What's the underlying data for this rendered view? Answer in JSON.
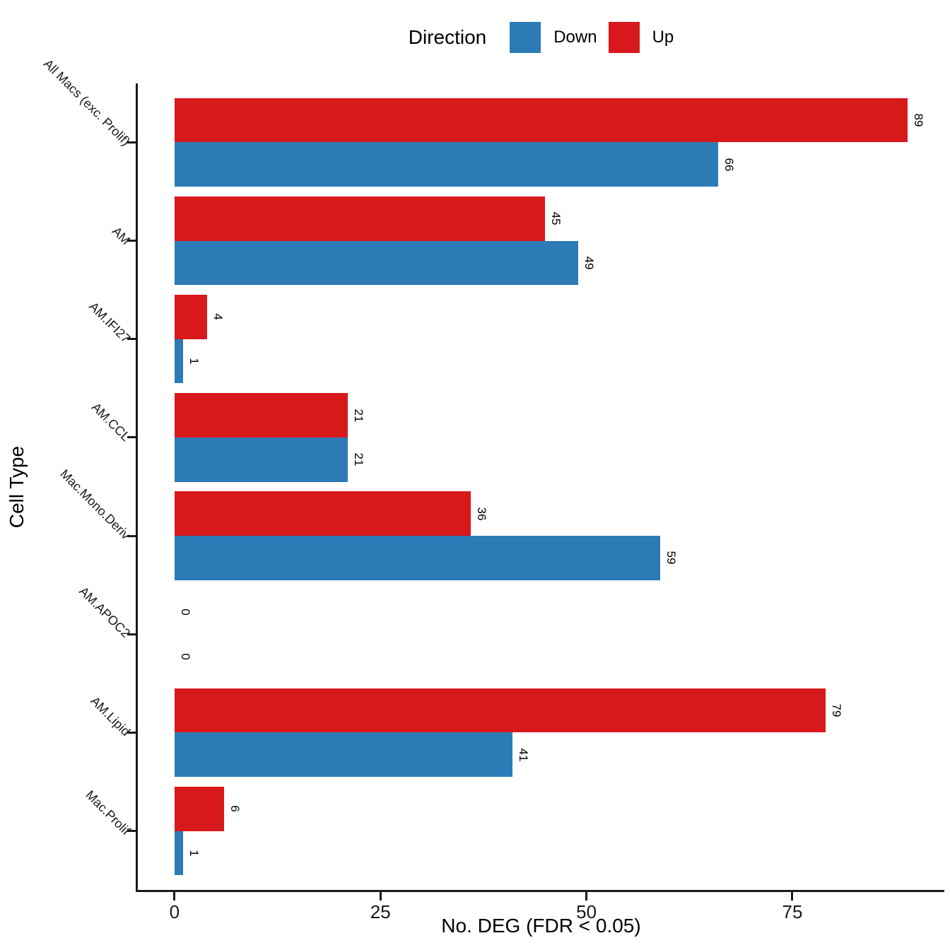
{
  "legend": {
    "title": "Direction",
    "items": [
      {
        "label": "Down",
        "color": "#2C7BB6"
      },
      {
        "label": "Up",
        "color": "#D7191C"
      }
    ]
  },
  "chart_data": {
    "type": "bar",
    "orientation": "horizontal",
    "title": "",
    "xlabel": "No. DEG (FDR < 0.05)",
    "ylabel": "Cell Type",
    "categories": [
      "All Macs (exc. Prolif)",
      "AM",
      "AM.IFI27",
      "AM.CCL",
      "Mac.Mono.Deriv",
      "AM.APOC2",
      "AM.Lipid",
      "Mac.Prolif"
    ],
    "series": [
      {
        "name": "Up",
        "color": "#D7191C",
        "values": [
          89,
          45,
          4,
          21,
          36,
          0,
          79,
          6
        ]
      },
      {
        "name": "Down",
        "color": "#2C7BB6",
        "values": [
          66,
          49,
          1,
          21,
          59,
          0,
          41,
          1
        ]
      }
    ],
    "xlim": [
      0,
      89
    ],
    "x_ticks": [
      0,
      25,
      50,
      75
    ],
    "grid": false,
    "legend_position": "top",
    "bar_value_labels": true
  }
}
